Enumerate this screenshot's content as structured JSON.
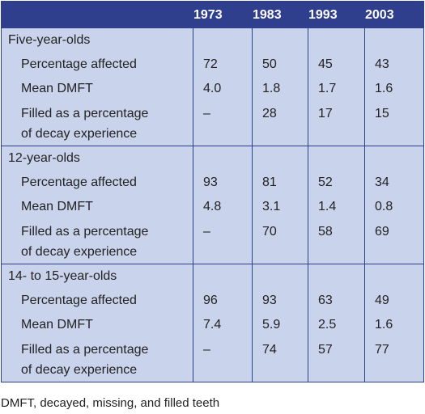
{
  "table": {
    "columns": [
      "1973",
      "1983",
      "1993",
      "2003"
    ],
    "groups": [
      {
        "title": "Five-year-olds",
        "rows": [
          {
            "label": "Percentage affected",
            "values": [
              "72",
              "50",
              "45",
              "43"
            ]
          },
          {
            "label": "Mean DMFT",
            "values": [
              "4.0",
              "1.8",
              "1.7",
              "1.6"
            ]
          },
          {
            "label_line1": "Filled as a percentage",
            "label_line2": "of decay experience",
            "values": [
              "–",
              "28",
              "17",
              "15"
            ]
          }
        ]
      },
      {
        "title": "12-year-olds",
        "rows": [
          {
            "label": "Percentage affected",
            "values": [
              "93",
              "81",
              "52",
              "34"
            ]
          },
          {
            "label": "Mean DMFT",
            "values": [
              "4.8",
              "3.1",
              "1.4",
              "0.8"
            ]
          },
          {
            "label_line1": "Filled as a percentage",
            "label_line2": "of decay experience",
            "values": [
              "–",
              "70",
              "58",
              "69"
            ]
          }
        ]
      },
      {
        "title": "14- to 15-year-olds",
        "rows": [
          {
            "label": "Percentage affected",
            "values": [
              "96",
              "93",
              "63",
              "49"
            ]
          },
          {
            "label": "Mean DMFT",
            "values": [
              "7.4",
              "5.9",
              "2.5",
              "1.6"
            ]
          },
          {
            "label_line1": "Filled as a percentage",
            "label_line2": "of decay experience",
            "values": [
              "–",
              "74",
              "57",
              "77"
            ]
          }
        ]
      }
    ]
  },
  "footnote": "DMFT, decayed, missing, and filled teeth",
  "colors": {
    "header_bg": "#2f3f8d",
    "cell_bg": "#c9d3ec",
    "border": "#2d3f8a"
  }
}
